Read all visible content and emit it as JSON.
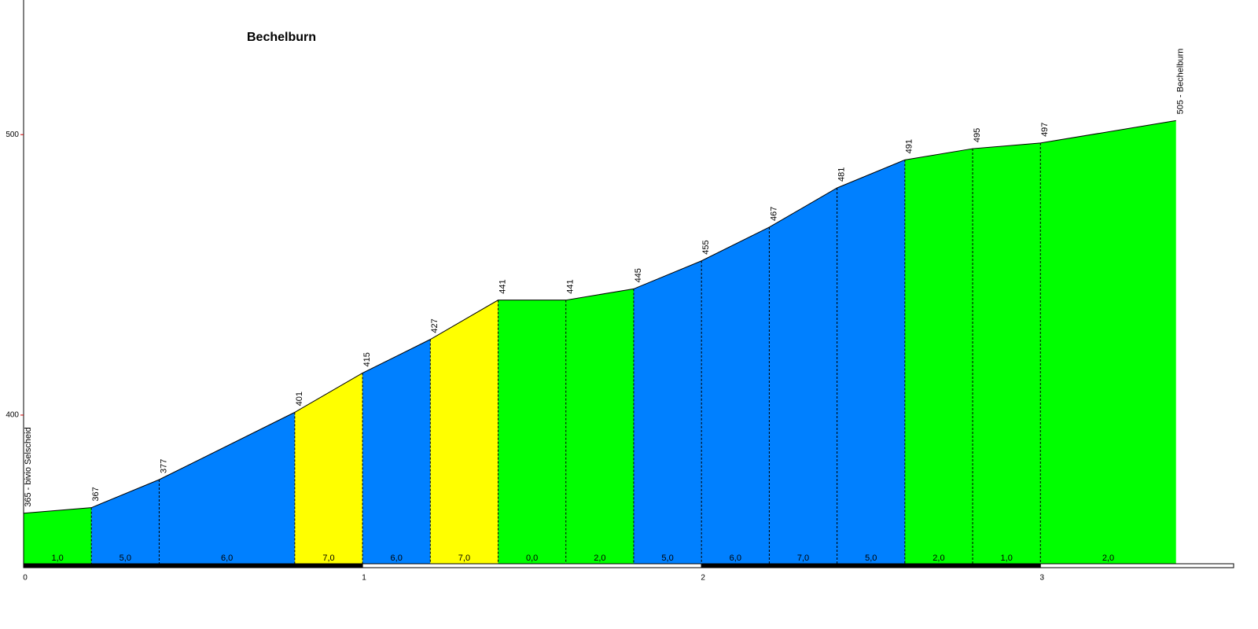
{
  "chart_data": {
    "type": "profile",
    "title": "Bechelburn",
    "x": [
      0,
      0.2,
      0.4,
      0.8,
      1.0,
      1.2,
      1.4,
      1.6,
      1.8,
      2.0,
      2.2,
      2.4,
      2.6,
      2.8,
      3.0,
      3.4
    ],
    "values": [
      365,
      367,
      377,
      401,
      415,
      427,
      441,
      441,
      445,
      455,
      467,
      481,
      491,
      495,
      497,
      505
    ],
    "value_labels": [
      "365 - bivio Selscheid",
      "367",
      "377",
      "401",
      "415",
      "427",
      "441",
      "441",
      "445",
      "455",
      "467",
      "481",
      "491",
      "495",
      "497",
      "505 - Bechelburn"
    ],
    "segments": {
      "values": [
        1,
        5,
        6,
        7,
        6,
        7,
        0,
        2,
        5,
        6,
        7,
        5,
        2,
        1,
        2
      ],
      "value_labels": [
        "1,0",
        "5,0",
        "6,0",
        "7,0",
        "6,0",
        "7,0",
        "0,0",
        "2,0",
        "5,0",
        "6,0",
        "7,0",
        "5,0",
        "2,0",
        "1,0",
        "2,0"
      ],
      "colors": [
        "#00ff00",
        "#0080ff",
        "#0080ff",
        "#ffff00",
        "#0080ff",
        "#ffff00",
        "#00ff00",
        "#00ff00",
        "#0080ff",
        "#0080ff",
        "#0080ff",
        "#0080ff",
        "#00ff00",
        "#00ff00",
        "#00ff00"
      ]
    },
    "xlim": [
      0,
      3.57
    ],
    "xticks": [
      0,
      1,
      2,
      3
    ],
    "ylim": [
      347,
      548
    ],
    "yticks": [
      400,
      500
    ]
  }
}
